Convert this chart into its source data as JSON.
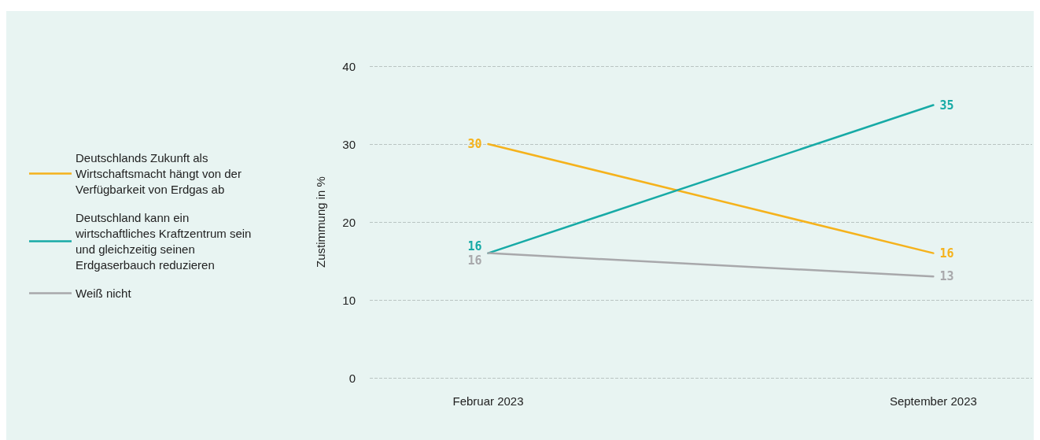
{
  "chart_data": {
    "type": "line",
    "ylabel": "Zustimmung in %",
    "categories": [
      "Februar 2023",
      "September 2023"
    ],
    "series": [
      {
        "name": "Deutschlands Zukunft als Wirtschaftsmacht hängt von der Verfügbarkeit von Erdgas ab",
        "color": "#f5b21c",
        "values": [
          30,
          16
        ]
      },
      {
        "name": "Deutschland kann ein wirtschaftliches Kraftzentrum sein und gleichzeitig seinen Erdgaserbauch reduzieren",
        "color": "#17aaa6",
        "values": [
          16,
          35
        ]
      },
      {
        "name": "Weiß nicht",
        "color": "#a8a8ab",
        "values": [
          16,
          13
        ]
      }
    ],
    "ylim": [
      0,
      40
    ],
    "yticks": [
      0,
      10,
      20,
      30,
      40
    ],
    "grid": "y",
    "legend": "left",
    "data_labels": true,
    "marker": "none",
    "line_style": "solid"
  }
}
